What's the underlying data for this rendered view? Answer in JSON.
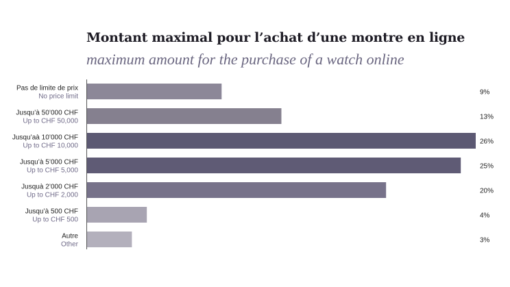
{
  "title": "Montant maximal pour l’achat d’une montre en ligne",
  "subtitle": "maximum amount for the purchase of a watch online",
  "chart_data": {
    "type": "bar",
    "orientation": "horizontal",
    "title": "Montant maximal pour l’achat d’une montre en ligne",
    "subtitle": "maximum amount for the purchase of a watch online",
    "unit": "%",
    "xlim": [
      0,
      26
    ],
    "grid": false,
    "categories": [
      {
        "fr": "Pas de limite de prix",
        "en": "No price limit"
      },
      {
        "fr": "Jusqu’à 50’000 CHF",
        "en": "Up to CHF 50,000"
      },
      {
        "fr": "Jusqu’aà 10’000 CHF",
        "en": "Up to CHF 10,000"
      },
      {
        "fr": "Jusqu’à 5’000 CHF",
        "en": "Up to CHF 5,000"
      },
      {
        "fr": "Jusquà 2’000 CHF",
        "en": "Up to CHF 2,000"
      },
      {
        "fr": "Jusqu’à 500 CHF",
        "en": "Up to CHF 500"
      },
      {
        "fr": "Autre",
        "en": "Other"
      }
    ],
    "values": [
      9,
      13,
      26,
      25,
      20,
      4,
      3
    ],
    "value_labels": [
      "9%",
      "13%",
      "26%",
      "25%",
      "20%",
      "4%",
      "3%"
    ],
    "colors": [
      "#8c8798",
      "#85808f",
      "#5c5973",
      "#5f5b75",
      "#77728a",
      "#a8a4b2",
      "#b3b0bc"
    ]
  }
}
